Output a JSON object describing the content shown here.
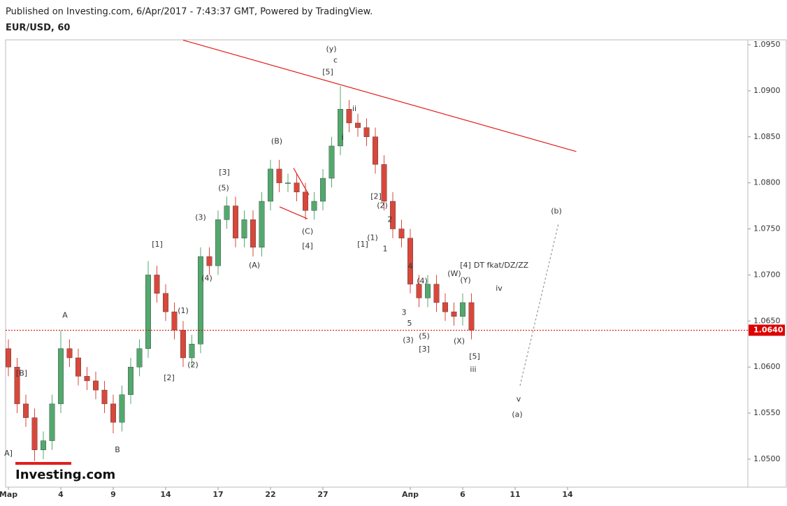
{
  "header": {
    "published": "Published on Investing.com, 6/Apr/2017 - 7:43:37 GMT, Powered by TradingView.",
    "logo": "Investing.com"
  },
  "chart_data": {
    "type": "candlestick",
    "title": "EUR/USD, 60",
    "colors": {
      "up": "#53a86e",
      "down": "#d9473b"
    },
    "x": [
      0,
      0.5,
      1,
      1.5,
      2,
      2.5,
      3,
      3.5,
      4,
      4.5,
      5,
      5.5,
      6,
      6.5,
      7,
      7.5,
      8,
      8.5,
      9,
      9.5,
      10,
      10.5,
      11,
      11.5,
      12,
      12.5,
      13,
      13.5,
      14,
      14.5,
      15,
      15.5,
      16,
      16.5,
      17,
      17.5,
      18,
      18.5,
      19,
      19.5,
      20,
      20.5,
      21,
      21.5,
      22,
      22.5,
      23,
      23.5,
      24,
      24.5,
      25,
      25.5,
      26,
      26.5
    ],
    "open": [
      1.062,
      1.06,
      1.056,
      1.0545,
      1.051,
      1.052,
      1.056,
      1.062,
      1.061,
      1.059,
      1.0585,
      1.0575,
      1.056,
      1.054,
      1.057,
      1.06,
      1.062,
      1.07,
      1.068,
      1.066,
      1.064,
      1.061,
      1.0625,
      1.072,
      1.071,
      1.076,
      1.0775,
      1.074,
      1.076,
      1.073,
      1.078,
      1.0815,
      1.08,
      1.08,
      1.079,
      1.077,
      1.078,
      1.0805,
      1.084,
      1.088,
      1.0865,
      1.086,
      1.085,
      1.082,
      1.078,
      1.075,
      1.074,
      1.069,
      1.0675,
      1.069,
      1.067,
      1.066,
      1.0655,
      1.067
    ],
    "high": [
      1.063,
      1.061,
      1.057,
      1.0555,
      1.053,
      1.057,
      1.064,
      1.063,
      1.062,
      1.06,
      1.0595,
      1.0585,
      1.057,
      1.058,
      1.061,
      1.063,
      1.0715,
      1.071,
      1.069,
      1.067,
      1.065,
      1.0635,
      1.073,
      1.073,
      1.077,
      1.0785,
      1.0785,
      1.077,
      1.077,
      1.079,
      1.0825,
      1.0825,
      1.081,
      1.081,
      1.08,
      1.079,
      1.0815,
      1.085,
      1.0905,
      1.089,
      1.0875,
      1.087,
      1.086,
      1.083,
      1.079,
      1.076,
      1.075,
      1.07,
      1.07,
      1.07,
      1.068,
      1.067,
      1.068,
      1.068
    ],
    "low": [
      1.059,
      1.055,
      1.0535,
      1.0498,
      1.05,
      1.051,
      1.055,
      1.06,
      1.058,
      1.0575,
      1.0565,
      1.055,
      1.0528,
      1.053,
      1.056,
      1.059,
      1.061,
      1.067,
      1.065,
      1.063,
      1.06,
      1.06,
      1.0615,
      1.07,
      1.07,
      1.075,
      1.073,
      1.073,
      1.072,
      1.072,
      1.077,
      1.079,
      1.079,
      1.078,
      1.076,
      1.076,
      1.077,
      1.0795,
      1.083,
      1.0855,
      1.085,
      1.084,
      1.081,
      1.077,
      1.074,
      1.073,
      1.068,
      1.0665,
      1.0665,
      1.066,
      1.065,
      1.0645,
      1.0645,
      1.063
    ],
    "close": [
      1.06,
      1.056,
      1.0545,
      1.051,
      1.052,
      1.056,
      1.062,
      1.061,
      1.059,
      1.0585,
      1.0575,
      1.056,
      1.054,
      1.057,
      1.06,
      1.062,
      1.07,
      1.068,
      1.066,
      1.064,
      1.061,
      1.0625,
      1.072,
      1.071,
      1.076,
      1.0775,
      1.074,
      1.076,
      1.073,
      1.078,
      1.0815,
      1.08,
      1.08,
      1.079,
      1.077,
      1.078,
      1.0805,
      1.084,
      1.088,
      1.0865,
      1.086,
      1.085,
      1.082,
      1.078,
      1.075,
      1.074,
      1.069,
      1.0675,
      1.069,
      1.067,
      1.066,
      1.0655,
      1.067,
      1.064
    ],
    "xlim": [
      -0.16,
      42.32
    ],
    "ylim": [
      1.04696,
      1.09553
    ],
    "xticks": [
      {
        "value": 0,
        "label": "Мар"
      },
      {
        "value": 3,
        "label": "4"
      },
      {
        "value": 6,
        "label": "9"
      },
      {
        "value": 9,
        "label": "14"
      },
      {
        "value": 12,
        "label": "17"
      },
      {
        "value": 15,
        "label": "22"
      },
      {
        "value": 18,
        "label": "27"
      },
      {
        "value": 23,
        "label": "Апр"
      },
      {
        "value": 26,
        "label": "6"
      },
      {
        "value": 29,
        "label": "11"
      },
      {
        "value": 32,
        "label": "14"
      }
    ],
    "yticks": [
      {
        "value": 1.05,
        "label": "1.0500"
      },
      {
        "value": 1.055,
        "label": "1.0550"
      },
      {
        "value": 1.06,
        "label": "1.0600"
      },
      {
        "value": 1.065,
        "label": "1.0650"
      },
      {
        "value": 1.07,
        "label": "1.0700"
      },
      {
        "value": 1.075,
        "label": "1.0750"
      },
      {
        "value": 1.08,
        "label": "1.0800"
      },
      {
        "value": 1.085,
        "label": "1.0850"
      },
      {
        "value": 1.09,
        "label": "1.0900"
      },
      {
        "value": 1.095,
        "label": "1.0950"
      }
    ],
    "last_price": {
      "value": 1.064,
      "label": "1.0640"
    },
    "lines": [
      {
        "x": [
          10,
          32.5
        ],
        "y": [
          1.0955,
          1.0834
        ],
        "color": "#e0201b",
        "dashed": false
      },
      {
        "x": [
          16.32,
          17.2
        ],
        "y": [
          1.0816,
          1.0787
        ],
        "color": "#e0201b",
        "dashed": false
      },
      {
        "x": [
          15.52,
          17.12
        ],
        "y": [
          1.0774,
          1.0761
        ],
        "color": "#e0201b",
        "dashed": false
      },
      {
        "x": [
          29.28,
          31.48
        ],
        "y": [
          1.05797,
          1.07557
        ],
        "color": "#999999",
        "dashed": true
      }
    ],
    "annotations": [
      {
        "text": "(y)",
        "x": 18.48,
        "y": 1.0945
      },
      {
        "text": "c",
        "x": 18.72,
        "y": 1.0933
      },
      {
        "text": "[5]",
        "x": 18.28,
        "y": 1.092
      },
      {
        "text": "ii",
        "x": 19.8,
        "y": 1.088
      },
      {
        "text": "i",
        "x": 19.12,
        "y": 1.0849
      },
      {
        "text": "(B)",
        "x": 15.36,
        "y": 1.0845
      },
      {
        "text": "[3]",
        "x": 12.36,
        "y": 1.0811
      },
      {
        "text": "(5)",
        "x": 12.32,
        "y": 1.0794
      },
      {
        "text": "(3)",
        "x": 11.0,
        "y": 1.0762
      },
      {
        "text": "[1]",
        "x": 8.52,
        "y": 1.0733
      },
      {
        "text": "(1)",
        "x": 10.0,
        "y": 1.0661
      },
      {
        "text": "(4)",
        "x": 11.36,
        "y": 1.0696
      },
      {
        "text": "(A)",
        "x": 14.08,
        "y": 1.071
      },
      {
        "text": "(C)",
        "x": 17.12,
        "y": 1.0747
      },
      {
        "text": "[4]",
        "x": 17.12,
        "y": 1.0731
      },
      {
        "text": "[2]",
        "x": 21.04,
        "y": 1.0785
      },
      {
        "text": "(2)",
        "x": 21.4,
        "y": 1.0775
      },
      {
        "text": "2",
        "x": 21.84,
        "y": 1.076
      },
      {
        "text": "[1]",
        "x": 20.28,
        "y": 1.0733
      },
      {
        "text": "(1)",
        "x": 20.84,
        "y": 1.074
      },
      {
        "text": "1",
        "x": 21.56,
        "y": 1.0728
      },
      {
        "text": "4",
        "x": 23.0,
        "y": 1.0709
      },
      {
        "text": "(4)",
        "x": 23.68,
        "y": 1.0693
      },
      {
        "text": "3",
        "x": 22.64,
        "y": 1.0659
      },
      {
        "text": "5",
        "x": 22.96,
        "y": 1.0647
      },
      {
        "text": "(3)",
        "x": 22.88,
        "y": 1.0629
      },
      {
        "text": "(5)",
        "x": 23.8,
        "y": 1.0633
      },
      {
        "text": "[3]",
        "x": 23.8,
        "y": 1.0619
      },
      {
        "text": "(W)",
        "x": 25.52,
        "y": 1.0701
      },
      {
        "text": "(Y)",
        "x": 26.16,
        "y": 1.0694
      },
      {
        "text": "[4]",
        "x": 26.16,
        "y": 1.071
      },
      {
        "text": "DT fkat/DZ/ZZ",
        "x": 28.2,
        "y": 1.071
      },
      {
        "text": "(X)",
        "x": 25.8,
        "y": 1.0628
      },
      {
        "text": "[5]",
        "x": 26.68,
        "y": 1.0611
      },
      {
        "text": "iii",
        "x": 26.6,
        "y": 1.0597
      },
      {
        "text": "iv",
        "x": 28.08,
        "y": 1.0685
      },
      {
        "text": "(b)",
        "x": 31.36,
        "y": 1.0769
      },
      {
        "text": "v",
        "x": 29.2,
        "y": 1.0565
      },
      {
        "text": "(a)",
        "x": 29.12,
        "y": 1.0548
      },
      {
        "text": "A",
        "x": 3.24,
        "y": 1.0656
      },
      {
        "text": "[B]",
        "x": 0.76,
        "y": 1.0593
      },
      {
        "text": "B",
        "x": 6.24,
        "y": 1.051
      },
      {
        "text": "[2]",
        "x": 9.2,
        "y": 1.0588
      },
      {
        "text": "(2)",
        "x": 10.56,
        "y": 1.0602
      },
      {
        "text": "A]",
        "x": 0.0,
        "y": 1.0506
      }
    ]
  }
}
